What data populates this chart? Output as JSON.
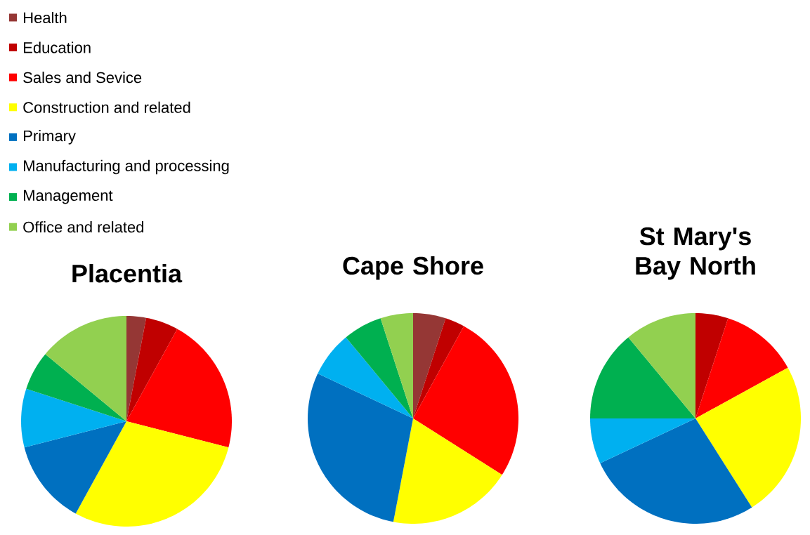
{
  "chart_data": [
    {
      "type": "pie",
      "title": "Placentia",
      "legend": "top left",
      "categories": [
        "Health",
        "Education",
        "Sales and Sevice",
        "Construction and related",
        "Primary",
        "Manufacturing and processing",
        "Management",
        "Office and related"
      ],
      "values": [
        3,
        5,
        21,
        29,
        13,
        9,
        6,
        14
      ],
      "colors": [
        "#953735",
        "#c00000",
        "#ff0000",
        "#ffff00",
        "#0070c0",
        "#00b0f0",
        "#00b050",
        "#92d050"
      ]
    },
    {
      "type": "pie",
      "title": "Cape Shore",
      "categories": [
        null,
        null,
        null,
        null,
        null,
        null,
        null,
        null
      ],
      "values": [
        5,
        3,
        26,
        19,
        29,
        7,
        6,
        5
      ],
      "colors": [
        "#953735",
        "#c00000",
        "#ff0000",
        "#ffff00",
        "#0070c0",
        "#00b0f0",
        "#00b050",
        "#92d050"
      ]
    },
    {
      "type": "pie",
      "title": "St Mary's Bay North",
      "categories": [
        null,
        null,
        null,
        null,
        null,
        null,
        null,
        null
      ],
      "values": [
        0,
        5,
        12,
        24,
        27,
        7,
        14,
        11
      ],
      "colors": [
        "#953735",
        "#c00000",
        "#ff0000",
        "#ffff00",
        "#0070c0",
        "#00b0f0",
        "#00b050",
        "#92d050"
      ]
    }
  ]
}
